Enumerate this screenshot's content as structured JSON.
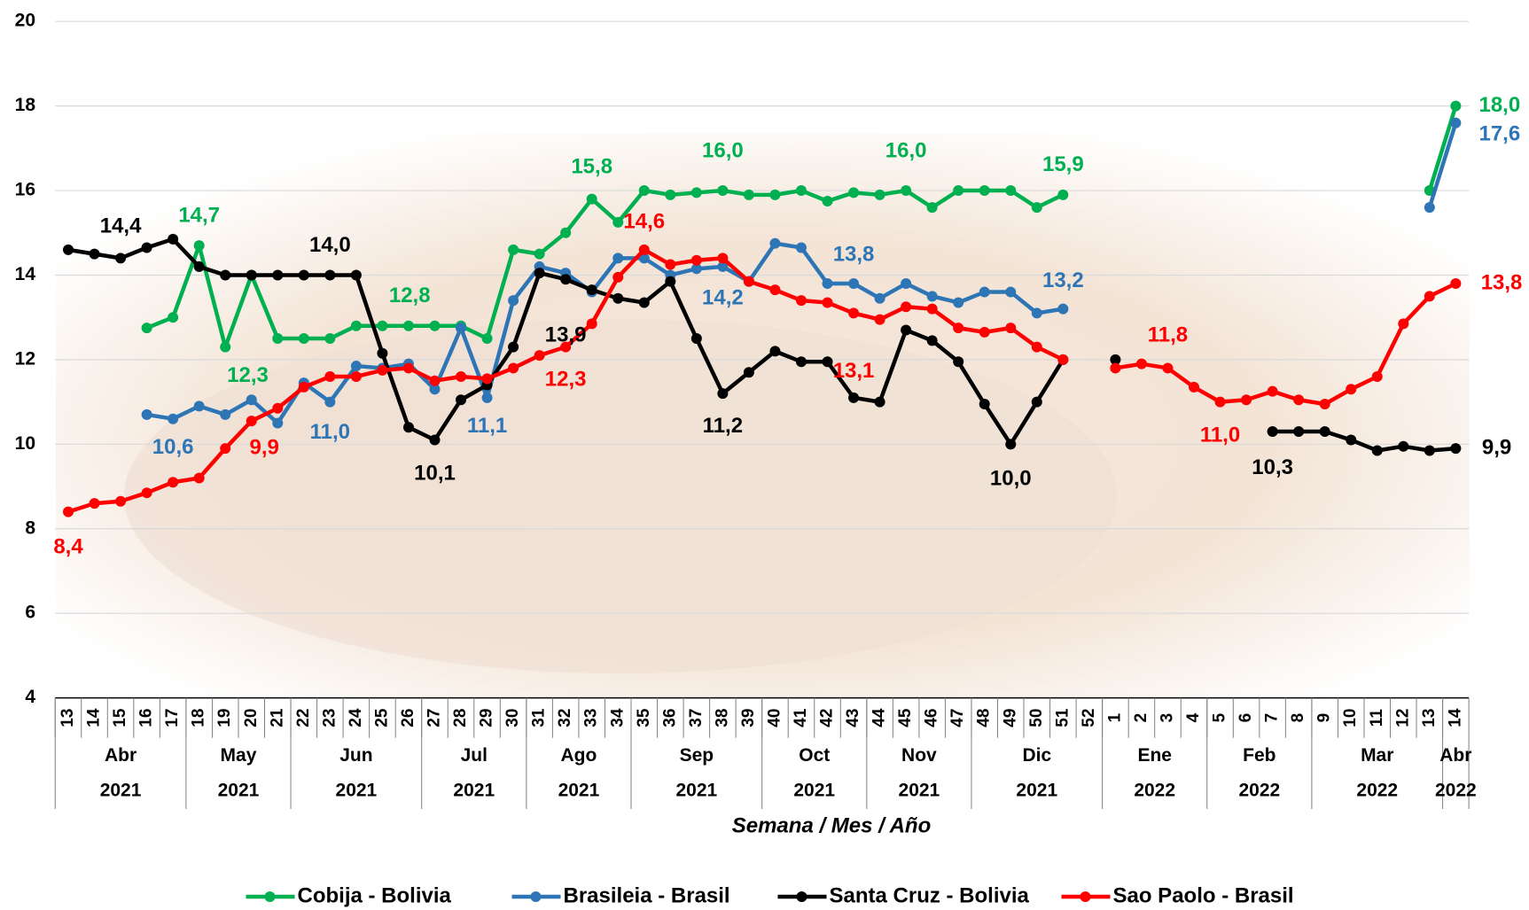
{
  "chart_data": {
    "type": "line",
    "x_axis_label": "Semana / Mes / Año",
    "categories": [
      "13",
      "14",
      "15",
      "16",
      "17",
      "18",
      "19",
      "20",
      "21",
      "22",
      "23",
      "24",
      "25",
      "26",
      "27",
      "28",
      "29",
      "30",
      "31",
      "32",
      "33",
      "34",
      "35",
      "36",
      "37",
      "38",
      "39",
      "40",
      "41",
      "42",
      "43",
      "44",
      "45",
      "46",
      "47",
      "48",
      "49",
      "50",
      "51",
      "52",
      "1",
      "2",
      "3",
      "4",
      "5",
      "6",
      "7",
      "8",
      "9",
      "10",
      "11",
      "12",
      "13",
      "14"
    ],
    "x_groups": [
      {
        "month": "Abr",
        "year": "2021",
        "count": 5
      },
      {
        "month": "May",
        "year": "2021",
        "count": 4
      },
      {
        "month": "Jun",
        "year": "2021",
        "count": 5
      },
      {
        "month": "Jul",
        "year": "2021",
        "count": 4
      },
      {
        "month": "Ago",
        "year": "2021",
        "count": 4
      },
      {
        "month": "Sep",
        "year": "2021",
        "count": 5
      },
      {
        "month": "Oct",
        "year": "2021",
        "count": 4
      },
      {
        "month": "Nov",
        "year": "2021",
        "count": 4
      },
      {
        "month": "Dic",
        "year": "2021",
        "count": 5
      },
      {
        "month": "Ene",
        "year": "2022",
        "count": 4
      },
      {
        "month": "Feb",
        "year": "2022",
        "count": 4
      },
      {
        "month": "Mar",
        "year": "2022",
        "count": 5
      },
      {
        "month": "Abr",
        "year": "2022",
        "count": 1
      }
    ],
    "ylim": [
      4,
      20
    ],
    "yticks": [
      4,
      6,
      8,
      10,
      12,
      14,
      16,
      18,
      20
    ],
    "grid": true,
    "legend": "bottom",
    "series": [
      {
        "name": "Cobija - Bolivia",
        "color": "#00b050",
        "values": [
          null,
          null,
          null,
          12.75,
          13.0,
          14.7,
          12.3,
          14.0,
          12.5,
          12.5,
          12.5,
          12.8,
          12.8,
          12.8,
          12.8,
          12.8,
          12.5,
          14.6,
          14.5,
          15.0,
          15.8,
          15.25,
          16.0,
          15.9,
          15.95,
          16.0,
          15.9,
          15.9,
          16.0,
          15.75,
          15.95,
          15.9,
          16.0,
          15.6,
          16.0,
          16.0,
          16.0,
          15.6,
          15.9,
          null,
          null,
          null,
          null,
          null,
          null,
          null,
          null,
          null,
          null,
          null,
          null,
          null,
          16.0,
          18.0
        ],
        "value_labels": [
          null,
          null,
          null,
          null,
          null,
          "14,7",
          "12,3",
          null,
          null,
          null,
          null,
          null,
          "12,8",
          null,
          null,
          null,
          null,
          null,
          null,
          null,
          "15,8",
          null,
          null,
          null,
          null,
          "16,0",
          null,
          null,
          null,
          null,
          null,
          null,
          "16,0",
          null,
          null,
          null,
          null,
          null,
          "15,9",
          null,
          null,
          null,
          null,
          null,
          null,
          null,
          null,
          null,
          null,
          null,
          null,
          null,
          null,
          "18,0"
        ]
      },
      {
        "name": "Brasileia - Brasil",
        "color": "#2e75b6",
        "values": [
          null,
          null,
          null,
          10.7,
          10.6,
          10.9,
          10.7,
          11.05,
          10.5,
          11.45,
          11.0,
          11.85,
          11.8,
          11.9,
          11.3,
          12.75,
          11.1,
          13.4,
          14.2,
          14.05,
          13.6,
          14.4,
          14.4,
          14.0,
          14.15,
          14.2,
          13.85,
          14.75,
          14.65,
          13.8,
          13.8,
          13.45,
          13.8,
          13.5,
          13.35,
          13.6,
          13.6,
          13.1,
          13.2,
          null,
          null,
          null,
          null,
          null,
          null,
          null,
          null,
          null,
          null,
          null,
          null,
          null,
          15.6,
          17.6
        ],
        "value_labels": [
          null,
          null,
          null,
          null,
          "10,6",
          null,
          null,
          null,
          null,
          null,
          "11,0",
          null,
          null,
          null,
          null,
          null,
          "11,1",
          null,
          null,
          null,
          null,
          null,
          null,
          null,
          null,
          "14,2",
          null,
          null,
          null,
          null,
          "13,8",
          null,
          null,
          null,
          null,
          null,
          null,
          null,
          "13,2",
          null,
          null,
          null,
          null,
          null,
          null,
          null,
          null,
          null,
          null,
          null,
          null,
          null,
          null,
          "17,6"
        ]
      },
      {
        "name": "Santa Cruz - Bolivia",
        "color": "#000000",
        "values": [
          14.6,
          14.5,
          14.4,
          14.65,
          14.85,
          14.2,
          14.0,
          14.0,
          14.0,
          14.0,
          14.0,
          14.0,
          12.15,
          10.4,
          10.1,
          11.05,
          11.4,
          12.3,
          14.05,
          13.9,
          13.65,
          13.45,
          13.35,
          13.85,
          12.5,
          11.2,
          11.7,
          12.2,
          11.95,
          11.95,
          11.1,
          11.0,
          12.7,
          12.45,
          11.95,
          10.95,
          10.0,
          11.0,
          12.0,
          null,
          12.0,
          null,
          null,
          null,
          null,
          null,
          10.3,
          10.3,
          10.3,
          10.1,
          9.85,
          9.95,
          9.85,
          9.9
        ],
        "value_labels": [
          null,
          null,
          "14,4",
          null,
          null,
          null,
          null,
          null,
          null,
          null,
          "14,0",
          null,
          null,
          null,
          "10,1",
          null,
          null,
          null,
          null,
          "13,9",
          null,
          null,
          null,
          null,
          null,
          "11,2",
          null,
          null,
          null,
          null,
          null,
          null,
          null,
          null,
          null,
          null,
          "10,0",
          null,
          null,
          null,
          null,
          null,
          null,
          null,
          null,
          null,
          "10,3",
          null,
          null,
          null,
          null,
          null,
          null,
          "9,9"
        ]
      },
      {
        "name": "Sao Paolo - Brasil",
        "color": "#ff0000",
        "values": [
          8.4,
          8.6,
          8.65,
          8.85,
          9.1,
          9.2,
          9.9,
          10.55,
          10.85,
          11.35,
          11.6,
          11.6,
          11.75,
          11.8,
          11.5,
          11.6,
          11.55,
          11.8,
          12.1,
          12.3,
          12.85,
          13.95,
          14.6,
          14.25,
          14.35,
          14.4,
          13.85,
          13.65,
          13.4,
          13.35,
          13.1,
          12.95,
          13.25,
          13.2,
          12.75,
          12.65,
          12.75,
          12.3,
          12.0,
          null,
          11.8,
          11.9,
          11.8,
          11.35,
          11.0,
          11.05,
          11.25,
          11.05,
          10.95,
          11.3,
          11.6,
          12.85,
          13.5,
          13.8
        ],
        "value_labels": [
          "8,4",
          null,
          null,
          null,
          null,
          null,
          "9,9",
          null,
          null,
          null,
          null,
          null,
          null,
          null,
          null,
          null,
          null,
          null,
          null,
          "12,3",
          null,
          null,
          "14,6",
          null,
          null,
          null,
          null,
          null,
          null,
          null,
          "13,1",
          null,
          null,
          null,
          null,
          null,
          null,
          null,
          null,
          null,
          null,
          null,
          "11,8",
          null,
          "11,0",
          null,
          null,
          null,
          null,
          null,
          null,
          null,
          null,
          "13,8"
        ]
      }
    ]
  }
}
